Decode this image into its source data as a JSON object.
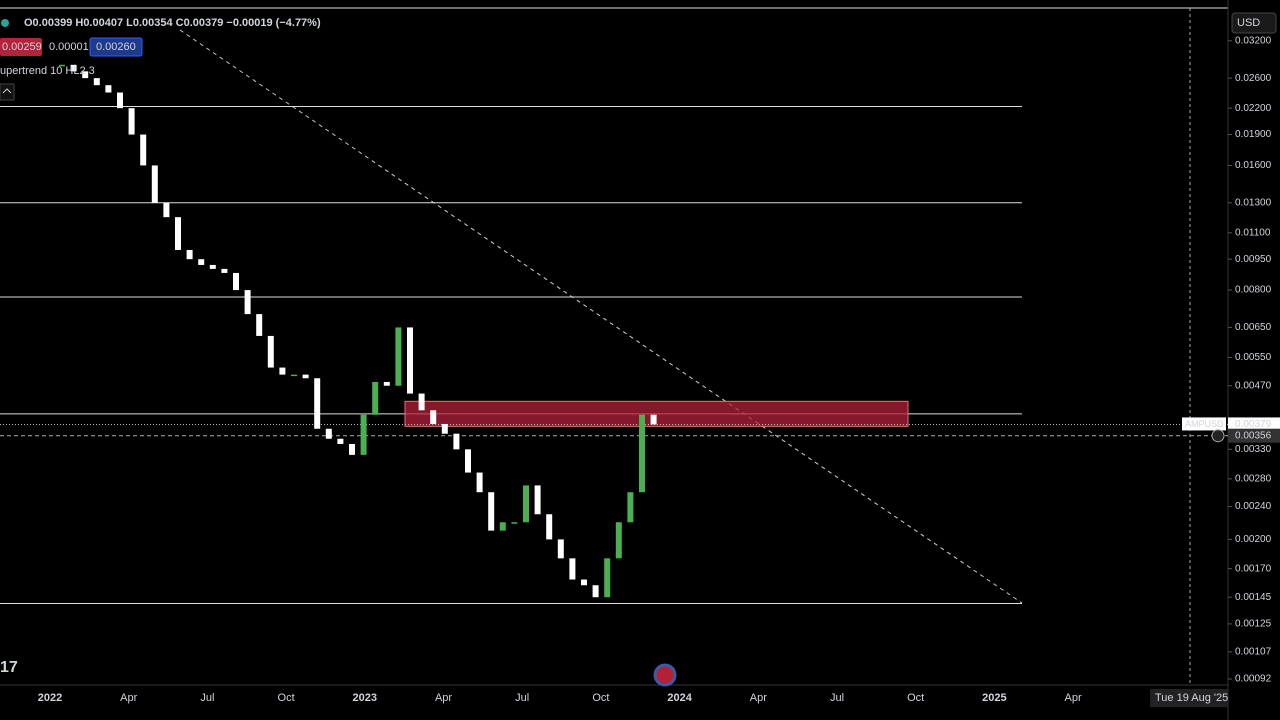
{
  "header": {
    "ohlc": "O0.00399 H0.00407 L0.00354 C0.00379 −0.00019 (−4.77%)",
    "badges": [
      "0.00259",
      "0.00001",
      "0.00260"
    ],
    "indicator": "upertrend 10 HL2 3",
    "currency": "USD",
    "logo": "17"
  },
  "chart": {
    "type": "candlestick",
    "log_scale": true,
    "closes": [
      0.028,
      0.027,
      0.026,
      0.025,
      0.024,
      0.022,
      0.019,
      0.016,
      0.013,
      0.012,
      0.01,
      0.0095,
      0.0092,
      0.009,
      0.0088,
      0.008,
      0.007,
      0.0062,
      0.0052,
      0.005,
      0.005,
      0.0049,
      0.0037,
      0.0035,
      0.0034,
      0.0032,
      0.004,
      0.0048,
      0.0047,
      0.0065,
      0.0045,
      0.0041,
      0.0038,
      0.0036,
      0.0033,
      0.0029,
      0.0026,
      0.0021,
      0.0022,
      0.0022,
      0.0027,
      0.0023,
      0.002,
      0.0018,
      0.0016,
      0.00155,
      0.00145,
      0.0018,
      0.0022,
      0.0026,
      0.004,
      0.00379
    ],
    "up_color": "#4caf50",
    "down_color": "#ffffff",
    "levels": [
      0.0222,
      0.013,
      0.0077,
      0.00402,
      0.0014
    ],
    "zone": [
      0.00375,
      0.00431
    ],
    "ylim": [
      0.00089,
      0.0384
    ],
    "yticks": [
      {
        "value": 0.032,
        "label": "0.03200"
      },
      {
        "value": 0.026,
        "label": "0.02600"
      },
      {
        "value": 0.022,
        "label": "0.02200"
      },
      {
        "value": 0.019,
        "label": "0.01900"
      },
      {
        "value": 0.016,
        "label": "0.01600"
      },
      {
        "value": 0.013,
        "label": "0.01300"
      },
      {
        "value": 0.011,
        "label": "0.01100"
      },
      {
        "value": 0.0095,
        "label": "0.00950"
      },
      {
        "value": 0.008,
        "label": "0.00800"
      },
      {
        "value": 0.0065,
        "label": "0.00650"
      },
      {
        "value": 0.0055,
        "label": "0.00550"
      },
      {
        "value": 0.0047,
        "label": "0.00470"
      },
      {
        "value": 0.0033,
        "label": "0.00330"
      },
      {
        "value": 0.0028,
        "label": "0.00280"
      },
      {
        "value": 0.0024,
        "label": "0.00240"
      },
      {
        "value": 0.002,
        "label": "0.00200"
      },
      {
        "value": 0.0017,
        "label": "0.00170"
      },
      {
        "value": 0.00145,
        "label": "0.00145"
      },
      {
        "value": 0.00125,
        "label": "0.00125"
      },
      {
        "value": 0.00107,
        "label": "0.00107"
      },
      {
        "value": 0.00092,
        "label": "0.00092"
      }
    ],
    "last_price": {
      "value": 0.00379,
      "label": "0.00379",
      "symbol": "AMPUSD"
    },
    "cursor_price": {
      "value": 0.00356,
      "label": "0.00356"
    },
    "cursor_date": "Tue 19 Aug '25",
    "x_labels": [
      "2022",
      "Apr",
      "Jul",
      "Oct",
      "2023",
      "Apr",
      "Jul",
      "Oct",
      "2024",
      "Apr",
      "Jul",
      "Oct",
      "2025",
      "Apr"
    ]
  }
}
